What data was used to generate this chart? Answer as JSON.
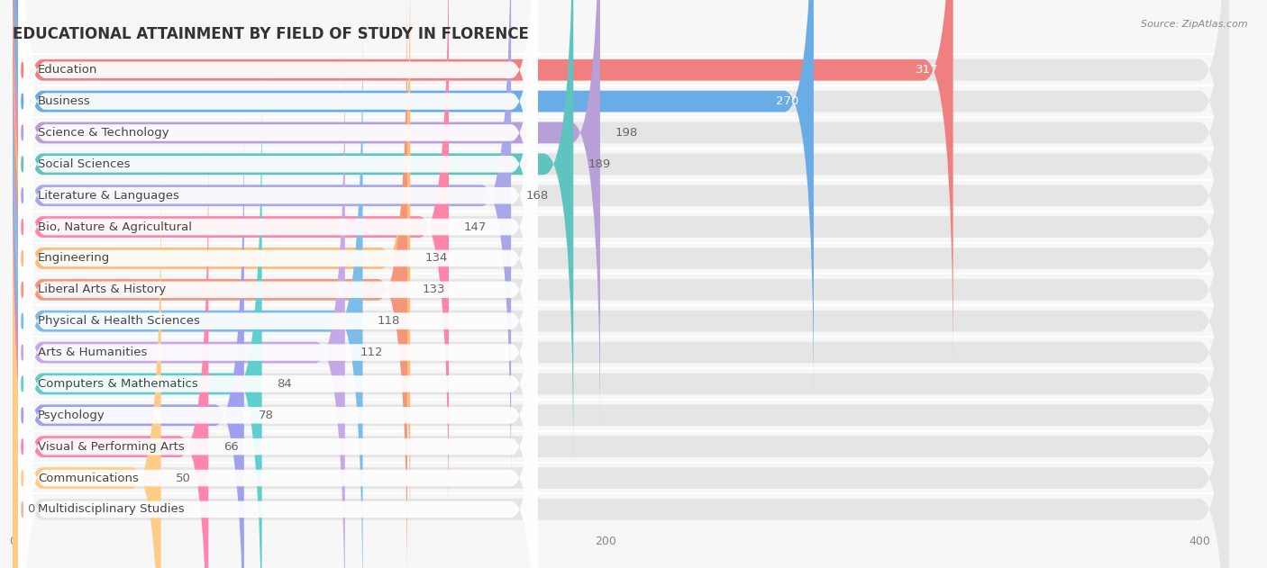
{
  "title": "EDUCATIONAL ATTAINMENT BY FIELD OF STUDY IN FLORENCE",
  "source": "Source: ZipAtlas.com",
  "categories": [
    "Education",
    "Business",
    "Science & Technology",
    "Social Sciences",
    "Literature & Languages",
    "Bio, Nature & Agricultural",
    "Engineering",
    "Liberal Arts & History",
    "Physical & Health Sciences",
    "Arts & Humanities",
    "Computers & Mathematics",
    "Psychology",
    "Visual & Performing Arts",
    "Communications",
    "Multidisciplinary Studies"
  ],
  "values": [
    317,
    270,
    198,
    189,
    168,
    147,
    134,
    133,
    118,
    112,
    84,
    78,
    66,
    50,
    0
  ],
  "colors": [
    "#F08080",
    "#6AACE6",
    "#B89FD8",
    "#5FC4C0",
    "#A8A8E8",
    "#FF85A8",
    "#FFBB77",
    "#F4967A",
    "#7BBDE8",
    "#C4A8E8",
    "#5ECECE",
    "#A0A0F0",
    "#FF85B0",
    "#FFCC88",
    "#F4B8A8"
  ],
  "xlim_max": 410,
  "xticks": [
    0,
    200,
    400
  ],
  "background_color": "#f7f7f7",
  "bar_bg_color": "#e5e5e5",
  "title_fontsize": 12,
  "label_fontsize": 9.5,
  "value_fontsize": 9.5
}
